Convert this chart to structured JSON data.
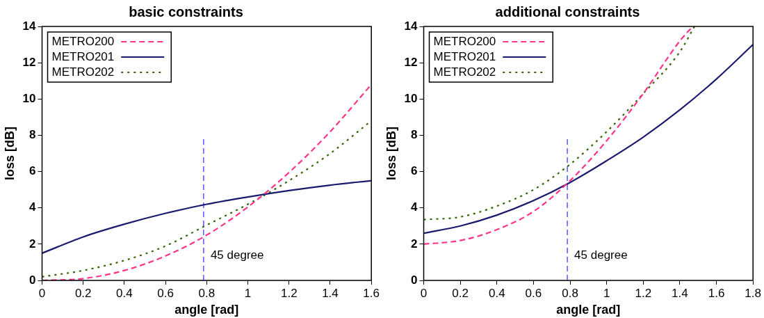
{
  "chart_data": [
    {
      "type": "line",
      "title": "basic constraints",
      "xlabel": "angle [rad]",
      "ylabel": "loss [dB]",
      "xlim": [
        0,
        1.6
      ],
      "xticks": [
        0,
        0.2,
        0.4,
        0.6,
        0.8,
        1,
        1.2,
        1.4,
        1.6
      ],
      "ylim": [
        0,
        14
      ],
      "yticks": [
        0,
        2,
        4,
        6,
        8,
        10,
        12,
        14
      ],
      "grid": false,
      "legend": "top left",
      "marker": "none",
      "series": [
        {
          "name": "METRO200",
          "color": "#ff3388",
          "line_style": "dashed",
          "x": [
            0,
            0.2,
            0.4,
            0.6,
            0.8,
            1,
            1.2,
            1.4,
            1.6
          ],
          "values": [
            0,
            0.1,
            0.55,
            1.35,
            2.5,
            4.05,
            5.95,
            8.2,
            10.8
          ]
        },
        {
          "name": "METRO201",
          "color": "#1a1a6e",
          "line_style": "solid",
          "x": [
            0,
            0.2,
            0.4,
            0.6,
            0.8,
            1,
            1.2,
            1.4,
            1.6
          ],
          "values": [
            1.5,
            2.4,
            3.1,
            3.7,
            4.2,
            4.6,
            4.95,
            5.25,
            5.5
          ]
        },
        {
          "name": "METRO202",
          "color": "#336600",
          "line_style": "dotted",
          "x": [
            0,
            0.2,
            0.4,
            0.6,
            0.8,
            1,
            1.2,
            1.4,
            1.6
          ],
          "values": [
            0.2,
            0.55,
            1.1,
            1.9,
            3.05,
            4.2,
            5.5,
            7,
            8.8
          ]
        }
      ],
      "ref_lines": [
        {
          "axis": "x",
          "value": 0.785,
          "label": "45 degree",
          "color": "#0000ff",
          "line_style": "dashed"
        }
      ]
    },
    {
      "type": "line",
      "title": "additional constraints",
      "xlabel": "angle [rad]",
      "ylabel": "loss [dB]",
      "xlim": [
        0,
        1.8
      ],
      "xticks": [
        0,
        0.2,
        0.4,
        0.6,
        0.8,
        1,
        1.2,
        1.4,
        1.6,
        1.8
      ],
      "ylim": [
        0,
        14
      ],
      "yticks": [
        0,
        2,
        4,
        6,
        8,
        10,
        12,
        14
      ],
      "grid": false,
      "legend": "top left",
      "marker": "none",
      "series": [
        {
          "name": "METRO200",
          "color": "#ff3388",
          "line_style": "dashed",
          "x": [
            0,
            0.2,
            0.4,
            0.6,
            0.8,
            1,
            1.2,
            1.4,
            1.47
          ],
          "values": [
            2,
            2.2,
            2.8,
            3.8,
            5.5,
            7.7,
            10.3,
            13.2,
            14
          ]
        },
        {
          "name": "METRO201",
          "color": "#1a1a6e",
          "line_style": "solid",
          "x": [
            0,
            0.2,
            0.4,
            0.6,
            0.8,
            1,
            1.2,
            1.4,
            1.6,
            1.8
          ],
          "values": [
            2.6,
            3,
            3.6,
            4.4,
            5.4,
            6.6,
            7.9,
            9.4,
            11.1,
            13
          ]
        },
        {
          "name": "METRO202",
          "color": "#336600",
          "line_style": "dotted",
          "x": [
            0,
            0.2,
            0.4,
            0.6,
            0.8,
            1,
            1.2,
            1.4,
            1.48
          ],
          "values": [
            3.35,
            3.5,
            4.1,
            5,
            6.4,
            8.2,
            10.3,
            12.6,
            14
          ]
        }
      ],
      "ref_lines": [
        {
          "axis": "x",
          "value": 0.785,
          "label": "45 degree",
          "color": "#0000ff",
          "line_style": "dashed"
        }
      ]
    }
  ]
}
